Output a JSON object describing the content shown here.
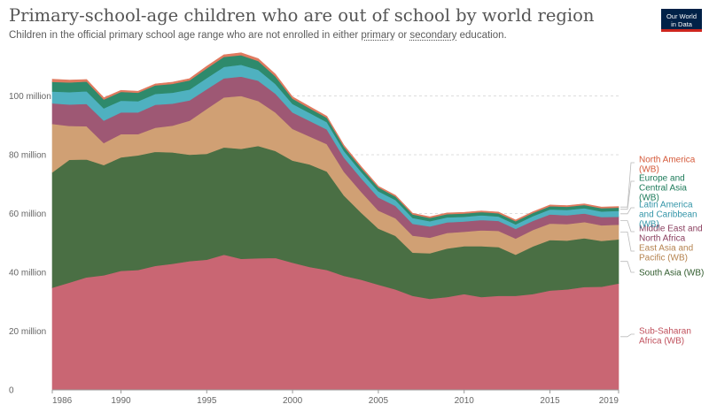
{
  "header": {
    "title": "Primary-school-age children who are out of school by world region",
    "subtitle_pre": "Children in the official primary school age range who are not enrolled in either ",
    "subtitle_link1": "primary",
    "subtitle_mid": " or ",
    "subtitle_link2": "secondary",
    "subtitle_post": " education.",
    "logo_line1": "Our World",
    "logo_line2": "in Data"
  },
  "chart_data": {
    "type": "area",
    "stacked": true,
    "x": [
      1986,
      1987,
      1988,
      1989,
      1990,
      1991,
      1992,
      1993,
      1994,
      1995,
      1996,
      1997,
      1998,
      1999,
      2000,
      2001,
      2002,
      2003,
      2004,
      2005,
      2006,
      2007,
      2008,
      2009,
      2010,
      2011,
      2012,
      2013,
      2014,
      2015,
      2016,
      2017,
      2018,
      2019
    ],
    "xlim": [
      1986,
      2019
    ],
    "ylim": [
      0,
      120000000
    ],
    "x_ticks": [
      1986,
      1990,
      1995,
      2000,
      2005,
      2010,
      2015,
      2019
    ],
    "y_ticks": [
      {
        "value": 0,
        "label": "0"
      },
      {
        "value": 20000000,
        "label": "20 million"
      },
      {
        "value": 40000000,
        "label": "40 million"
      },
      {
        "value": 60000000,
        "label": "60 million"
      },
      {
        "value": 80000000,
        "label": "80 million"
      },
      {
        "value": 100000000,
        "label": "100 million"
      }
    ],
    "series": [
      {
        "name": "Sub-Saharan Africa (WB)",
        "color": "#c96673",
        "label_color": "#c0505c",
        "values": [
          34.8,
          36.5,
          38.3,
          39,
          40.5,
          40.8,
          42.2,
          42.9,
          43.8,
          44.3,
          46,
          44.6,
          44.8,
          44.9,
          43.3,
          41.8,
          40.8,
          38.8,
          37.5,
          35.8,
          34.2,
          32,
          31,
          31.6,
          32.6,
          31.6,
          32,
          32,
          32.6,
          33.8,
          34.2,
          35,
          35.1,
          36.2
        ]
      },
      {
        "name": "South Asia (WB)",
        "color": "#4a6f44",
        "label_color": "#2f5a2c",
        "values": [
          39.2,
          41.8,
          40.1,
          37.5,
          38.6,
          39,
          38.8,
          37.9,
          36.2,
          36,
          36.5,
          37.4,
          38.2,
          36.4,
          34.7,
          34.9,
          33.5,
          27.3,
          22.8,
          19.1,
          18.2,
          14.7,
          15.5,
          16.5,
          16.3,
          17.3,
          16.6,
          14,
          16.2,
          17.2,
          16.6,
          16.6,
          15.6,
          15
        ]
      },
      {
        "name": "East Asia and Pacific (WB)",
        "color": "#d0a074",
        "label_color": "#b5834f",
        "values": [
          16.5,
          11.5,
          11.3,
          7.5,
          7.9,
          7.2,
          8.2,
          9.1,
          11.6,
          15.3,
          17,
          18,
          15.3,
          13.1,
          10.8,
          9.5,
          9.3,
          8.1,
          7.1,
          6.1,
          6,
          5.8,
          5.3,
          5.3,
          4.9,
          5.4,
          5.5,
          5.5,
          5.6,
          5.6,
          5.6,
          5.5,
          5.3,
          5
        ]
      },
      {
        "name": "Middle East and North Africa",
        "color": "#9e5874",
        "label_color": "#8a3e5e",
        "values": [
          7,
          7.3,
          7.6,
          7.6,
          7.4,
          7.4,
          7.8,
          7.5,
          6.9,
          6.7,
          6.5,
          6.6,
          6.9,
          6.4,
          5.6,
          5.3,
          5,
          4.8,
          4.6,
          4.5,
          4.2,
          4,
          3.8,
          3.6,
          3.5,
          3.5,
          3.4,
          3.3,
          3.1,
          3.1,
          3,
          2.9,
          2.8,
          2.7
        ]
      },
      {
        "name": "Latin America and Caribbean (WB)",
        "color": "#4fb1c0",
        "label_color": "#3395a8",
        "values": [
          4,
          4.2,
          4.3,
          4.2,
          4,
          3.8,
          3.7,
          3.7,
          3.7,
          3.8,
          3.9,
          4,
          3.7,
          3.3,
          2.9,
          2.7,
          2.5,
          2.3,
          2.2,
          2.1,
          2,
          2,
          1.8,
          1.7,
          1.6,
          1.6,
          1.5,
          1.5,
          1.6,
          1.7,
          1.8,
          1.8,
          1.9,
          2
        ]
      },
      {
        "name": "Europe and Central Asia (WB)",
        "color": "#2e8a6c",
        "label_color": "#1c7a59",
        "values": [
          3.3,
          3.3,
          3.3,
          3,
          3,
          2.9,
          2.9,
          3,
          3.1,
          3.3,
          3.4,
          3.3,
          3,
          2.6,
          1.8,
          1.6,
          1.5,
          1.4,
          1.3,
          1.3,
          1.2,
          1.2,
          1.1,
          1.1,
          1.1,
          1.1,
          1.1,
          1.1,
          1.1,
          1.1,
          1.1,
          1.1,
          1.1,
          1.1
        ]
      },
      {
        "name": "North America (WB)",
        "color": "#e07a5f",
        "label_color": "#d55a3a",
        "values": [
          0.9,
          0.8,
          0.7,
          0.6,
          0.5,
          0.5,
          0.5,
          0.6,
          0.6,
          0.7,
          0.7,
          0.8,
          0.8,
          0.7,
          0.6,
          0.6,
          0.5,
          0.5,
          0.5,
          0.4,
          0.4,
          0.4,
          0.4,
          0.4,
          0.4,
          0.4,
          0.4,
          0.4,
          0.4,
          0.4,
          0.4,
          0.4,
          0.4,
          0.4
        ]
      }
    ],
    "legend_position": "right",
    "grid": true
  }
}
